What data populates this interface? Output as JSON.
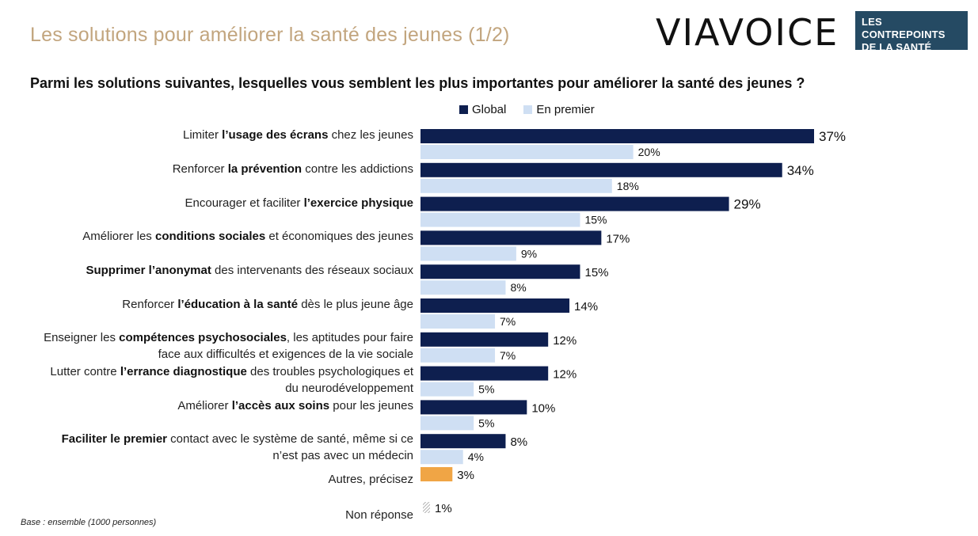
{
  "page": {
    "title": "Les solutions pour améliorer la santé des jeunes (1/2)",
    "question": "Parmi les solutions suivantes, lesquelles vous semblent les plus importantes pour améliorer la santé des jeunes ?",
    "base_note": "Base : ensemble (1000 personnes)"
  },
  "logos": {
    "viavoice": "VIAVOICE",
    "contrepoints_line1": "LES CONTREPOINTS",
    "contrepoints_line2": "DE LA SANTÉ"
  },
  "colors": {
    "global": "#0e1f4f",
    "premier": "#cfdff3",
    "autres": "#f0a545",
    "nonreponse": "#9e9e9e",
    "title": "#c2a57e"
  },
  "chart_data": {
    "type": "bar",
    "orientation": "horizontal",
    "unit": "%",
    "xlim": [
      0,
      40
    ],
    "legend": [
      "Global",
      "En premier"
    ],
    "categories": [
      {
        "pre": "Limiter ",
        "bold": "l’usage des écrans",
        "post": " chez les jeunes",
        "line2": ""
      },
      {
        "pre": "Renforcer ",
        "bold": "la prévention",
        "post": " contre les addictions",
        "line2": ""
      },
      {
        "pre": "Encourager et faciliter ",
        "bold": "l’exercice physique",
        "post": "",
        "line2": ""
      },
      {
        "pre": "Améliorer les ",
        "bold": "conditions sociales",
        "post": " et économiques des jeunes",
        "line2": ""
      },
      {
        "pre": "",
        "bold": "Supprimer l’anonymat",
        "post": " des intervenants des réseaux sociaux",
        "line2": ""
      },
      {
        "pre": "Renforcer ",
        "bold": "l’éducation à la santé",
        "post": " dès le plus jeune âge",
        "line2": ""
      },
      {
        "pre": "Enseigner les ",
        "bold": "compétences psychosociales",
        "post": ", les aptitudes pour faire",
        "line2": "face aux difficultés et exigences de la vie sociale"
      },
      {
        "pre": "Lutter contre ",
        "bold": "l’errance diagnostique",
        "post": " des troubles psychologiques et",
        "line2": "du neurodéveloppement"
      },
      {
        "pre": "Améliorer ",
        "bold": "l’accès aux soins",
        "post": " pour les jeunes",
        "line2": ""
      },
      {
        "pre": "",
        "bold": "Faciliter le premier",
        "post": " contact avec le système de santé, même si ce",
        "line2": "n’est pas avec un médecin"
      },
      {
        "pre": "Autres, précisez",
        "bold": "",
        "post": "",
        "line2": ""
      },
      {
        "pre": "Non réponse",
        "bold": "",
        "post": "",
        "line2": ""
      }
    ],
    "series": [
      {
        "name": "Global",
        "values": [
          37,
          34,
          29,
          17,
          15,
          14,
          12,
          12,
          10,
          8,
          3,
          1
        ]
      },
      {
        "name": "En premier",
        "values": [
          20,
          18,
          15,
          9,
          8,
          7,
          7,
          5,
          5,
          4,
          null,
          null
        ]
      }
    ]
  }
}
